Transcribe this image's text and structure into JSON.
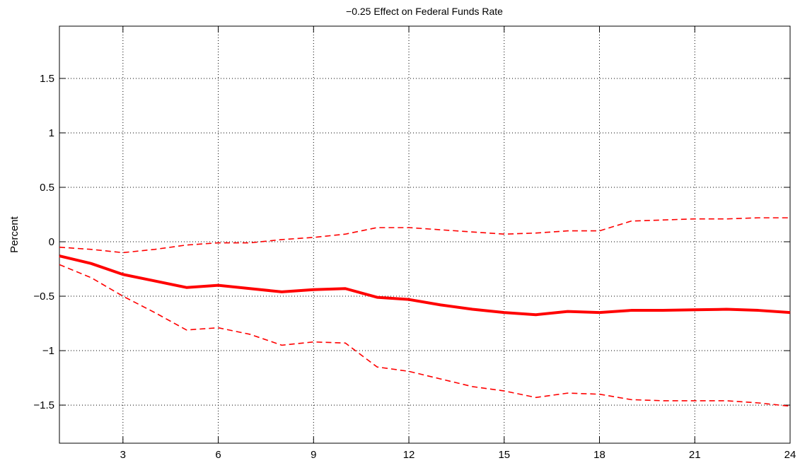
{
  "chart_data": {
    "type": "line",
    "title": "−0.25 Effect on Federal Funds Rate",
    "xlabel": "",
    "ylabel": "Percent",
    "xlim": [
      1,
      24
    ],
    "ylim": [
      -1.85,
      1.98
    ],
    "grid": true,
    "x_ticks": [
      3,
      6,
      9,
      12,
      15,
      18,
      21,
      24
    ],
    "x_tick_labels": [
      "3",
      "6",
      "9",
      "12",
      "15",
      "18",
      "21",
      "24"
    ],
    "y_ticks": [
      -1.5,
      -1,
      -0.5,
      0,
      0.5,
      1,
      1.5
    ],
    "y_tick_labels": [
      "−1.5",
      "−1",
      "−0.5",
      "0",
      "0.5",
      "1",
      "1.5"
    ],
    "x": [
      1,
      2,
      3,
      4,
      5,
      6,
      7,
      8,
      9,
      10,
      11,
      12,
      13,
      14,
      15,
      16,
      17,
      18,
      19,
      20,
      21,
      22,
      23,
      24
    ],
    "series": [
      {
        "role": "estimate",
        "style": "solid",
        "color": "#ff0000",
        "values": [
          -0.13,
          -0.2,
          -0.3,
          -0.36,
          -0.42,
          -0.4,
          -0.43,
          -0.46,
          -0.44,
          -0.43,
          -0.51,
          -0.53,
          -0.58,
          -0.62,
          -0.65,
          -0.67,
          -0.64,
          -0.65,
          -0.63,
          -0.63,
          -0.625,
          -0.62,
          -0.63,
          -0.65
        ]
      },
      {
        "role": "upper-band",
        "style": "dashed",
        "color": "#ff0000",
        "values": [
          -0.05,
          -0.07,
          -0.1,
          -0.07,
          -0.03,
          -0.01,
          -0.01,
          0.02,
          0.04,
          0.07,
          0.13,
          0.13,
          0.11,
          0.09,
          0.07,
          0.08,
          0.1,
          0.1,
          0.19,
          0.2,
          0.21,
          0.21,
          0.22,
          0.22
        ]
      },
      {
        "role": "lower-band",
        "style": "dashed",
        "color": "#ff0000",
        "values": [
          -0.21,
          -0.33,
          -0.5,
          -0.65,
          -0.81,
          -0.79,
          -0.85,
          -0.95,
          -0.92,
          -0.93,
          -1.15,
          -1.19,
          -1.26,
          -1.33,
          -1.37,
          -1.43,
          -1.39,
          -1.4,
          -1.45,
          -1.46,
          -1.46,
          -1.46,
          -1.48,
          -1.51
        ]
      }
    ]
  }
}
